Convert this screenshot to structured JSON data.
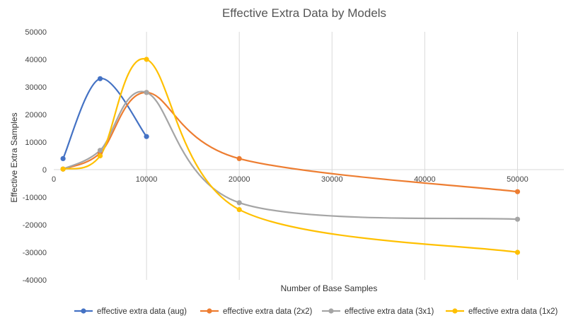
{
  "chart_data": {
    "type": "scatter",
    "title": "Effective Extra Data by Models",
    "xlabel": "Number of Base Samples",
    "ylabel": "Effective Extra Samples",
    "xlim": [
      0,
      55000
    ],
    "ylim": [
      -40000,
      50000
    ],
    "x_ticks": [
      0,
      10000,
      20000,
      30000,
      40000,
      50000
    ],
    "y_ticks": [
      -40000,
      -30000,
      -20000,
      -10000,
      0,
      10000,
      20000,
      30000,
      40000,
      50000
    ],
    "grid": "vertical",
    "legend_position": "bottom",
    "series": [
      {
        "name": "effective extra data (aug)",
        "color": "#4472C4",
        "x": [
          1000,
          5000,
          10000
        ],
        "y": [
          4000,
          33000,
          12000
        ]
      },
      {
        "name": "effective extra data (2x2)",
        "color": "#ED7D31",
        "x": [
          1000,
          5000,
          10000,
          20000,
          50000
        ],
        "y": [
          200,
          6000,
          28000,
          4000,
          -8000
        ]
      },
      {
        "name": "effective extra data (3x1)",
        "color": "#A5A5A5",
        "x": [
          1000,
          5000,
          10000,
          20000,
          50000
        ],
        "y": [
          200,
          7000,
          28000,
          -12000,
          -18000
        ]
      },
      {
        "name": "effective extra data (1x2)",
        "color": "#FFC000",
        "x": [
          1000,
          5000,
          10000,
          20000,
          50000
        ],
        "y": [
          200,
          5000,
          40000,
          -14500,
          -30000
        ]
      }
    ]
  }
}
